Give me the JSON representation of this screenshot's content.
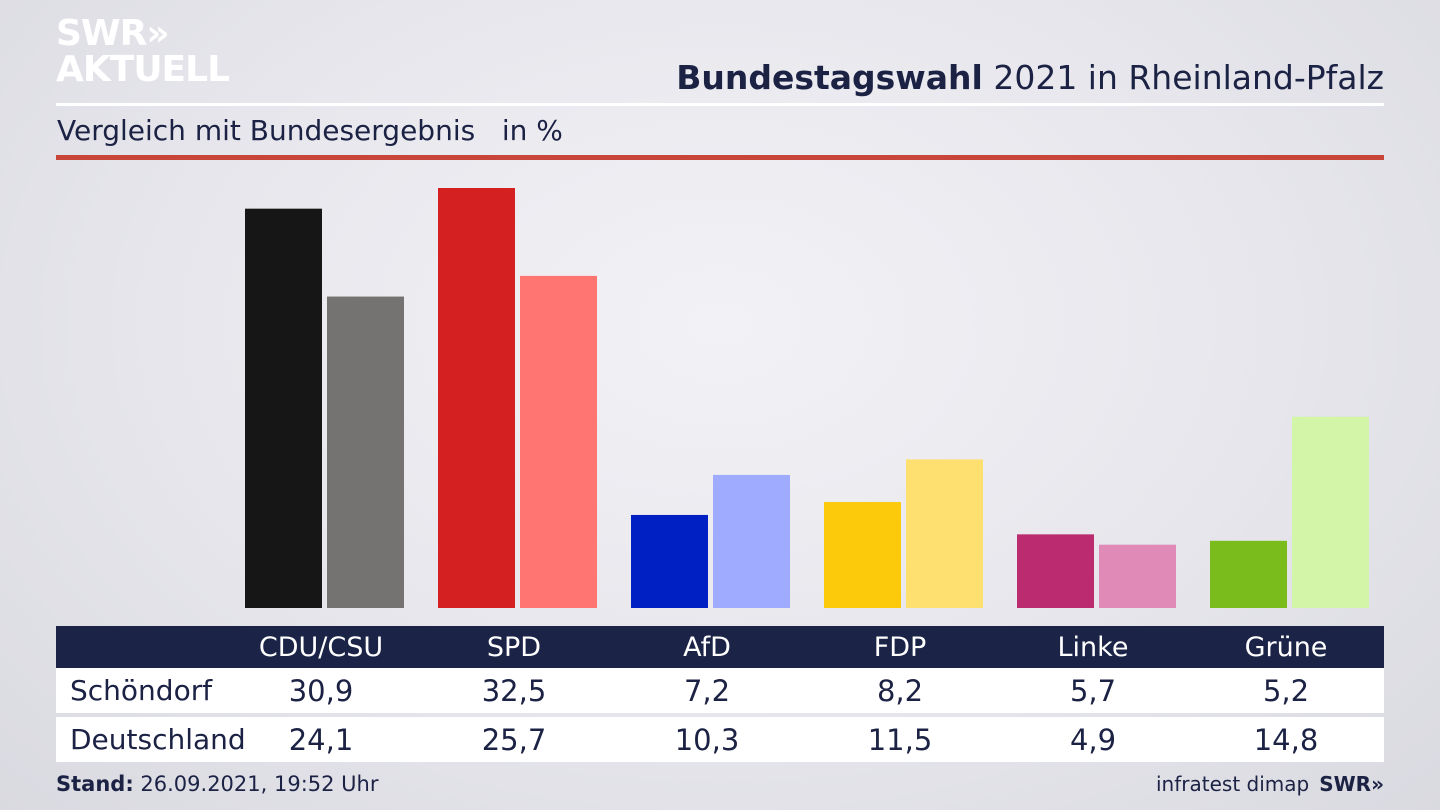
{
  "logo": {
    "line1": "SWR»",
    "line2": "AKTUELL"
  },
  "header": {
    "title_bold": "Bundestagswahl",
    "title_rest": " 2021 in Rheinland-Pfalz"
  },
  "subtitle": "Vergleich mit Bundesergebnis   in %",
  "footer": {
    "stand_label": "Stand:",
    "stand_value": " 26.09.2021, 19:52 Uhr",
    "source": "infratest dimap",
    "brand": "SWR»"
  },
  "chart_data": {
    "type": "bar",
    "categories": [
      "CDU/CSU",
      "SPD",
      "AfD",
      "FDP",
      "Linke",
      "Grüne"
    ],
    "series": [
      {
        "name": "Schöndorf",
        "values": [
          30.9,
          32.5,
          7.2,
          8.2,
          5.7,
          5.2
        ],
        "colors": [
          "#161616",
          "#d42020",
          "#0020c4",
          "#fcca0b",
          "#bb2b70",
          "#79bc1c"
        ]
      },
      {
        "name": "Deutschland",
        "values": [
          24.1,
          25.7,
          10.3,
          11.5,
          4.9,
          14.8
        ],
        "colors": [
          "#757371",
          "#fe7572",
          "#9eabfe",
          "#fee070",
          "#e08ab8",
          "#d2f5a8"
        ]
      }
    ],
    "ylim": [
      0,
      32.5
    ]
  },
  "table": {
    "headers": [
      "CDU/CSU",
      "SPD",
      "AfD",
      "FDP",
      "Linke",
      "Grüne"
    ],
    "rows": [
      {
        "label": "Schöndorf",
        "values": [
          "30,9",
          "32,5",
          "7,2",
          "8,2",
          "5,7",
          "5,2"
        ]
      },
      {
        "label": "Deutschland",
        "values": [
          "24,1",
          "25,7",
          "10,3",
          "11,5",
          "4,9",
          "14,8"
        ]
      }
    ]
  }
}
